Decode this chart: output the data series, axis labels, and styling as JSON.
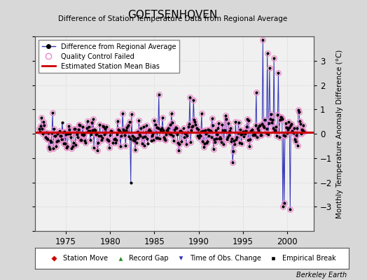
{
  "title": "GOETSENHOVEN",
  "subtitle": "Difference of Station Temperature Data from Regional Average",
  "ylabel": "Monthly Temperature Anomaly Difference (°C)",
  "xlabel_ticks": [
    1975,
    1980,
    1985,
    1990,
    1995,
    2000
  ],
  "ylim": [
    -4,
    4
  ],
  "yticks": [
    -3,
    -2,
    -1,
    0,
    1,
    2,
    3
  ],
  "yticks_outer": [
    -4,
    -3,
    -2,
    -1,
    0,
    1,
    2,
    3,
    4
  ],
  "xlim": [
    1971.5,
    2003.0
  ],
  "bias_value": 0.07,
  "plot_bg": "#f0f0f0",
  "fig_bg": "#d8d8d8",
  "line_color": "#3333bb",
  "bias_color": "#cc0000",
  "qc_color": "#ee88cc",
  "watermark": "Berkeley Earth",
  "seed": 42
}
